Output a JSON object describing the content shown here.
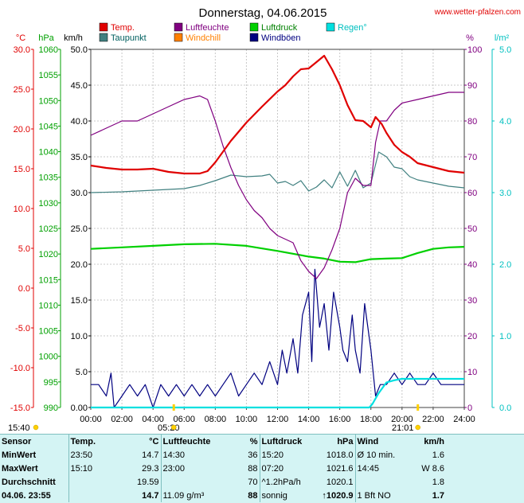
{
  "chart_data": {
    "type": "line",
    "title": "Donnerstag, 04.06.2015",
    "source": "www.wetter-pfalzen.com",
    "x_ticks": [
      "00:00",
      "02:00",
      "04:00",
      "06:00",
      "08:00",
      "10:00",
      "12:00",
      "14:00",
      "16:00",
      "18:00",
      "20:00",
      "22:00",
      "24:00"
    ],
    "x_range": [
      0,
      24
    ],
    "axes": {
      "temp_c": {
        "label": "°C",
        "range": [
          -15,
          30
        ],
        "ticks": [
          "30.0",
          "25.0",
          "20.0",
          "15.0",
          "10.0",
          "5.0",
          "0.0",
          "-5.0",
          "-10.0",
          "-15.0"
        ],
        "color": "#e00000"
      },
      "pressure_hpa": {
        "label": "hPa",
        "range": [
          990,
          1060
        ],
        "ticks": [
          "1060",
          "1055",
          "1050",
          "1045",
          "1040",
          "1035",
          "1030",
          "1025",
          "1020",
          "1015",
          "1010",
          "1005",
          "1000",
          "995",
          "990"
        ],
        "color": "#00a000"
      },
      "wind_kmh": {
        "label": "km/h",
        "range": [
          0,
          50
        ],
        "ticks": [
          "50.0",
          "45.0",
          "40.0",
          "35.0",
          "30.0",
          "25.0",
          "20.0",
          "15.0",
          "10.0",
          "5.0",
          "0.00"
        ],
        "color": "#000000"
      },
      "humidity_pct": {
        "label": "%",
        "range": [
          0,
          100
        ],
        "ticks": [
          "100",
          "90",
          "80",
          "70",
          "60",
          "50",
          "40",
          "30",
          "20",
          "10",
          "0"
        ],
        "color": "#800080"
      },
      "rain_lm2h": {
        "label": "l/m²",
        "range": [
          0,
          5
        ],
        "ticks": [
          "5.0",
          "4.0",
          "3.0",
          "2.0",
          "1.0",
          "0.0"
        ],
        "color": "#00c0c0"
      }
    },
    "legend": [
      {
        "name": "Temp.",
        "color": "#e00000"
      },
      {
        "name": "Luftfeuchte",
        "color": "#800080"
      },
      {
        "name": "Luftdruck",
        "color": "#00d000"
      },
      {
        "name": "Regen°",
        "color": "#00e0e0"
      },
      {
        "name": "Taupunkt",
        "color": "#408080"
      },
      {
        "name": "Windchill",
        "color": "#ff8000"
      },
      {
        "name": "Windböen",
        "color": "#000080"
      }
    ],
    "series": [
      {
        "name": "Temp.",
        "axis": "temp_c",
        "color": "#e00000",
        "x": [
          0,
          1,
          2,
          3,
          4,
          5,
          6,
          7,
          7.5,
          8,
          9,
          10,
          11,
          12,
          12.5,
          13,
          13.5,
          14,
          14.5,
          15,
          15.5,
          16,
          16.5,
          17,
          17.5,
          18,
          18.3,
          18.7,
          19,
          19.5,
          20,
          20.5,
          21,
          22,
          23,
          24
        ],
        "y": [
          15.4,
          15.1,
          14.9,
          14.9,
          15.0,
          14.6,
          14.4,
          14.4,
          14.7,
          15.8,
          18.5,
          20.8,
          22.8,
          24.7,
          25.5,
          26.6,
          27.5,
          27.6,
          28.4,
          29.2,
          27.5,
          25.5,
          23.0,
          21.1,
          21.0,
          20.2,
          21.5,
          20.6,
          19.5,
          18.0,
          17.1,
          16.5,
          15.7,
          15.2,
          14.7,
          14.5
        ]
      },
      {
        "name": "Taupunkt",
        "axis": "temp_c",
        "color": "#408080",
        "x": [
          0,
          2,
          4,
          6,
          7,
          8,
          9,
          10,
          11,
          11.5,
          12,
          12.5,
          13,
          13.5,
          14,
          14.5,
          15,
          15.5,
          16,
          16.5,
          17,
          17.5,
          18,
          18.5,
          19,
          19.5,
          20,
          20.5,
          21,
          22,
          23,
          24
        ],
        "y": [
          12.0,
          12.1,
          12.3,
          12.5,
          12.9,
          13.5,
          14.2,
          14.0,
          14.1,
          14.3,
          13.2,
          13.4,
          12.9,
          13.5,
          12.2,
          12.7,
          13.6,
          12.6,
          14.6,
          12.8,
          14.8,
          12.6,
          13.2,
          17.1,
          16.5,
          15.2,
          15.0,
          14.0,
          13.6,
          13.2,
          12.8,
          12.6
        ]
      },
      {
        "name": "Luftfeuchte",
        "axis": "humidity_pct",
        "color": "#800080",
        "x": [
          0,
          1,
          2,
          3,
          4,
          5,
          6,
          6.5,
          7,
          7.5,
          8,
          8.5,
          9,
          9.5,
          10,
          10.5,
          11,
          11.5,
          12,
          12.5,
          13,
          13.5,
          14,
          14.5,
          15,
          15.5,
          16,
          16.5,
          17,
          17.5,
          18,
          18.3,
          18.6,
          19,
          19.5,
          20,
          21,
          22,
          23,
          24
        ],
        "y": [
          76,
          78,
          80,
          80,
          82,
          84,
          86,
          86.5,
          87,
          86,
          80,
          73,
          67,
          62,
          58,
          55,
          53,
          50,
          48,
          47,
          46,
          41,
          38,
          36,
          39,
          44,
          50,
          60,
          64,
          62,
          62,
          74,
          80,
          80,
          83,
          85,
          86,
          87,
          88,
          88
        ]
      },
      {
        "name": "Luftdruck",
        "axis": "pressure_hpa",
        "color": "#00d000",
        "x": [
          0,
          2,
          4,
          6,
          8,
          10,
          12,
          14,
          15,
          16,
          17,
          18,
          19,
          20,
          21,
          22,
          23,
          24
        ],
        "y": [
          1021.0,
          1021.3,
          1021.6,
          1021.9,
          1022.0,
          1021.6,
          1020.6,
          1019.5,
          1019.1,
          1018.5,
          1018.4,
          1019.0,
          1019.1,
          1019.2,
          1020.2,
          1021.0,
          1021.3,
          1021.4
        ]
      },
      {
        "name": "Windböen",
        "axis": "wind_kmh",
        "color": "#000080",
        "x": [
          0,
          0.5,
          1,
          1.3,
          1.5,
          2,
          2.5,
          3,
          3.5,
          4,
          4.5,
          5,
          5.5,
          6,
          6.5,
          7,
          7.5,
          8,
          8.5,
          9,
          9.5,
          10,
          10.5,
          11,
          11.5,
          12,
          12.3,
          12.6,
          13,
          13.3,
          13.6,
          14,
          14.2,
          14.4,
          14.7,
          15,
          15.3,
          15.6,
          16,
          16.2,
          16.5,
          16.8,
          17,
          17.3,
          17.6,
          18,
          18.3,
          18.6,
          19,
          19.5,
          20,
          20.5,
          21,
          21.5,
          22,
          22.5,
          23,
          23.5,
          24
        ],
        "y": [
          3.2,
          3.2,
          1.6,
          4.8,
          0,
          1.6,
          3.2,
          1.6,
          3.2,
          0,
          3.2,
          1.6,
          3.2,
          1.6,
          3.2,
          1.6,
          3.2,
          1.6,
          3.2,
          4.8,
          1.6,
          3.2,
          4.8,
          3.2,
          6.4,
          3.2,
          8.0,
          4.8,
          9.6,
          4.8,
          12.9,
          16.1,
          6.4,
          19.3,
          11.2,
          14.5,
          8.0,
          16.1,
          11.2,
          8.0,
          6.4,
          12.9,
          8.0,
          4.8,
          14.5,
          8.0,
          1.6,
          3.2,
          3.2,
          4.8,
          3.2,
          4.8,
          3.2,
          3.2,
          4.8,
          3.2,
          3.2,
          3.2,
          3.2
        ]
      },
      {
        "name": "Regen°",
        "axis": "rain_lm2h",
        "color": "#00e0e0",
        "x": [
          0,
          17.9,
          18.1,
          18.5,
          19.0,
          19.5,
          20,
          21,
          22,
          23,
          24
        ],
        "y": [
          0,
          0,
          0.05,
          0.2,
          0.35,
          0.38,
          0.4,
          0.4,
          0.4,
          0.4,
          0.4
        ]
      }
    ],
    "sun": {
      "sunrise": "05:20",
      "sunset": "21:01",
      "daylight_start": "15:40"
    }
  },
  "summary": {
    "headers": {
      "sensor": "Sensor",
      "temp": "Temp.",
      "temp_unit": "°C",
      "hum": "Luftfeuchte",
      "hum_unit": "%",
      "press": "Luftdruck",
      "press_unit": "hPa",
      "wind": "Wind",
      "wind_unit": "km/h"
    },
    "rows": [
      {
        "label": "MinWert",
        "t_time": "23:50",
        "t_val": "14.7",
        "h_time": "14:30",
        "h_val": "36",
        "p_time": "15:20",
        "p_val": "1018.0",
        "w_time": "Ø 10 min.",
        "w_val": "1.6"
      },
      {
        "label": "MaxWert",
        "t_time": "15:10",
        "t_val": "29.3",
        "h_time": "23:00",
        "h_val": "88",
        "p_time": "07:20",
        "p_val": "1021.6",
        "w_time": "14:45",
        "w_val": "W 8.6"
      },
      {
        "label": "Durchschnitt",
        "t_time": "",
        "t_val": "19.59",
        "h_time": "",
        "h_val": "70",
        "p_time": "^1.2hPa/h",
        "p_val": "1020.1",
        "w_time": "",
        "w_val": "1.8"
      },
      {
        "label": "04.06. 23:55",
        "t_time": "",
        "t_val": "14.7",
        "h_time": "11.09 g/m³",
        "h_val": "88",
        "p_time": "sonnig",
        "p_val": "↑1020.9",
        "w_time": "1 Bft NO",
        "w_val": "1.7"
      }
    ]
  }
}
